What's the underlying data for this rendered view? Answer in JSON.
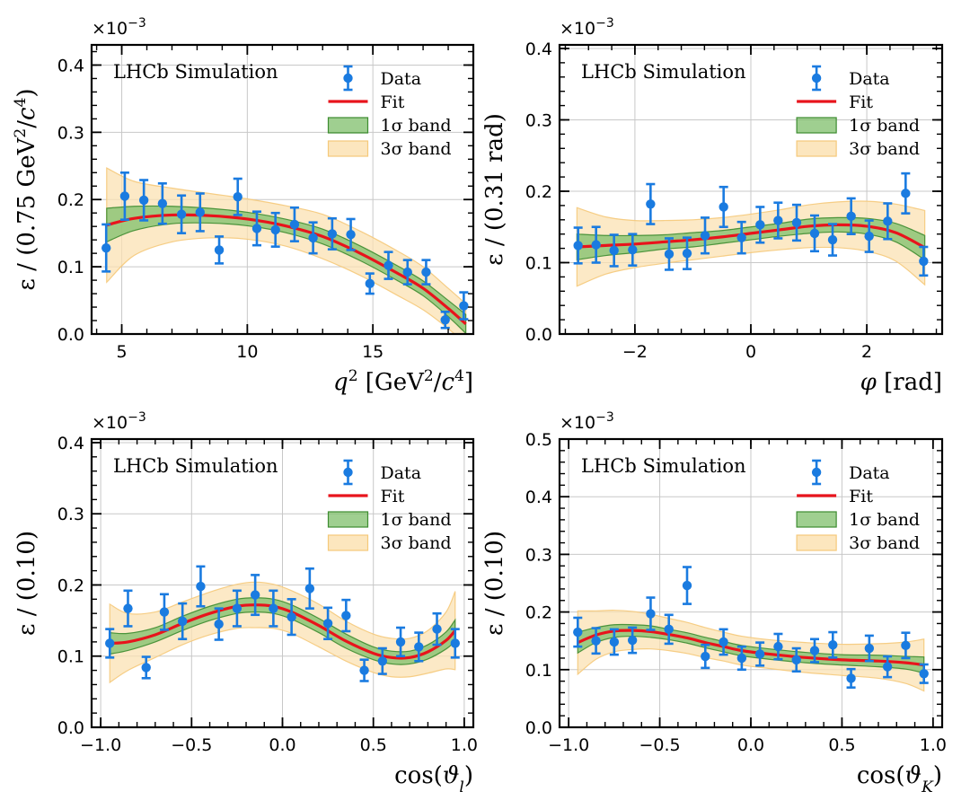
{
  "chart_data": [
    {
      "type": "scatter",
      "id": "q2",
      "multiplier": "×10⁻³",
      "simulation_label": "LHCb Simulation",
      "xlabel": "q² [GeV²/c⁴]",
      "ylabel": "ε / (0.75 GeV²/c⁴)",
      "xlim": [
        3.8,
        19.0
      ],
      "ylim": [
        0.0,
        0.43
      ],
      "xticks": [
        5,
        10,
        15
      ],
      "xtick_labels": [
        "5",
        "10",
        "15"
      ],
      "yticks": [
        0.0,
        0.1,
        0.2,
        0.3,
        0.4
      ],
      "ytick_labels": [
        "0.0",
        "0.1",
        "0.2",
        "0.3",
        "0.4"
      ],
      "legend": {
        "data": "Data",
        "fit": "Fit",
        "band1": "1σ band",
        "band3": "3σ band"
      },
      "data": {
        "x": [
          4.38,
          5.12,
          5.88,
          6.62,
          7.38,
          8.12,
          8.88,
          9.62,
          10.38,
          11.12,
          11.88,
          12.62,
          13.38,
          14.12,
          14.88,
          15.62,
          16.38,
          17.12,
          17.88,
          18.62
        ],
        "y": [
          0.128,
          0.205,
          0.199,
          0.194,
          0.178,
          0.181,
          0.125,
          0.204,
          0.157,
          0.155,
          0.163,
          0.143,
          0.149,
          0.148,
          0.075,
          0.102,
          0.092,
          0.092,
          0.021,
          0.042
        ],
        "yerr": [
          0.035,
          0.035,
          0.03,
          0.03,
          0.028,
          0.028,
          0.02,
          0.027,
          0.025,
          0.025,
          0.025,
          0.023,
          0.023,
          0.023,
          0.015,
          0.02,
          0.018,
          0.018,
          0.012,
          0.02
        ]
      },
      "fit": {
        "x": [
          4.4,
          5.5,
          7.0,
          8.5,
          10.0,
          11.5,
          13.0,
          14.5,
          16.0,
          17.0,
          18.0,
          18.7
        ],
        "y": [
          0.162,
          0.172,
          0.177,
          0.176,
          0.171,
          0.161,
          0.145,
          0.12,
          0.09,
          0.068,
          0.038,
          0.015
        ],
        "band1": [
          0.025,
          0.018,
          0.013,
          0.011,
          0.01,
          0.01,
          0.011,
          0.011,
          0.011,
          0.011,
          0.012,
          0.014
        ],
        "band3": [
          0.085,
          0.055,
          0.04,
          0.033,
          0.03,
          0.03,
          0.033,
          0.033,
          0.033,
          0.032,
          0.03,
          0.03
        ]
      }
    },
    {
      "type": "scatter",
      "id": "phi",
      "multiplier": "×10⁻³",
      "simulation_label": "LHCb Simulation",
      "xlabel": "φ [rad]",
      "ylabel": "ε / (0.31 rad)",
      "xlim": [
        -3.3,
        3.3
      ],
      "ylim": [
        0.0,
        0.405
      ],
      "xticks": [
        -2,
        0,
        2
      ],
      "xtick_labels": [
        "−2",
        "0",
        "2"
      ],
      "yticks": [
        0.0,
        0.1,
        0.2,
        0.3,
        0.4
      ],
      "ytick_labels": [
        "0.0",
        "0.1",
        "0.2",
        "0.3",
        "0.4"
      ],
      "legend": {
        "data": "Data",
        "fit": "Fit",
        "band1": "1σ band",
        "band3": "3σ band"
      },
      "data": {
        "x": [
          -2.98,
          -2.67,
          -2.36,
          -2.04,
          -1.73,
          -1.41,
          -1.1,
          -0.79,
          -0.47,
          -0.16,
          0.16,
          0.47,
          0.79,
          1.1,
          1.41,
          1.73,
          2.04,
          2.36,
          2.67,
          2.98
        ],
        "y": [
          0.124,
          0.125,
          0.117,
          0.118,
          0.182,
          0.112,
          0.113,
          0.138,
          0.178,
          0.135,
          0.153,
          0.159,
          0.156,
          0.141,
          0.132,
          0.165,
          0.137,
          0.158,
          0.197,
          0.102
        ],
        "yerr": [
          0.025,
          0.025,
          0.022,
          0.022,
          0.028,
          0.022,
          0.022,
          0.025,
          0.028,
          0.022,
          0.025,
          0.025,
          0.025,
          0.025,
          0.022,
          0.025,
          0.022,
          0.025,
          0.028,
          0.02
        ]
      },
      "fit": {
        "x": [
          -3.0,
          -2.5,
          -2.0,
          -1.5,
          -1.0,
          -0.5,
          0.0,
          0.5,
          1.0,
          1.5,
          2.0,
          2.5,
          3.0
        ],
        "y": [
          0.122,
          0.124,
          0.126,
          0.129,
          0.132,
          0.136,
          0.141,
          0.146,
          0.151,
          0.153,
          0.151,
          0.142,
          0.121
        ],
        "band1": [
          0.018,
          0.014,
          0.012,
          0.01,
          0.01,
          0.009,
          0.009,
          0.009,
          0.01,
          0.01,
          0.011,
          0.013,
          0.017
        ],
        "band3": [
          0.055,
          0.04,
          0.033,
          0.03,
          0.028,
          0.027,
          0.027,
          0.028,
          0.03,
          0.032,
          0.035,
          0.04,
          0.052
        ]
      }
    },
    {
      "type": "scatter",
      "id": "costhetal",
      "multiplier": "×10⁻³",
      "simulation_label": "LHCb Simulation",
      "xlabel": "cos(ϑ_l)",
      "ylabel": "ε / (0.10)",
      "xlim": [
        -1.05,
        1.05
      ],
      "ylim": [
        0.0,
        0.405
      ],
      "xticks": [
        -1.0,
        -0.5,
        0.0,
        0.5,
        1.0
      ],
      "xtick_labels": [
        "−1.0",
        "−0.5",
        "0.0",
        "0.5",
        "1.0"
      ],
      "yticks": [
        0.0,
        0.1,
        0.2,
        0.3,
        0.4
      ],
      "ytick_labels": [
        "0.0",
        "0.1",
        "0.2",
        "0.3",
        "0.4"
      ],
      "legend": {
        "data": "Data",
        "fit": "Fit",
        "band1": "1σ band",
        "band3": "3σ band"
      },
      "data": {
        "x": [
          -0.95,
          -0.85,
          -0.75,
          -0.65,
          -0.55,
          -0.45,
          -0.35,
          -0.25,
          -0.15,
          -0.05,
          0.05,
          0.15,
          0.25,
          0.35,
          0.45,
          0.55,
          0.65,
          0.75,
          0.85,
          0.95
        ],
        "y": [
          0.118,
          0.167,
          0.084,
          0.162,
          0.149,
          0.198,
          0.145,
          0.167,
          0.186,
          0.167,
          0.155,
          0.195,
          0.146,
          0.157,
          0.08,
          0.093,
          0.12,
          0.113,
          0.138,
          0.118
        ],
        "yerr": [
          0.02,
          0.025,
          0.015,
          0.025,
          0.025,
          0.028,
          0.022,
          0.025,
          0.028,
          0.025,
          0.025,
          0.028,
          0.022,
          0.022,
          0.015,
          0.018,
          0.02,
          0.02,
          0.022,
          0.02
        ]
      },
      "fit": {
        "x": [
          -0.95,
          -0.85,
          -0.7,
          -0.55,
          -0.4,
          -0.25,
          -0.15,
          -0.05,
          0.05,
          0.2,
          0.35,
          0.5,
          0.6,
          0.7,
          0.8,
          0.9,
          0.95
        ],
        "y": [
          0.118,
          0.12,
          0.13,
          0.146,
          0.16,
          0.17,
          0.172,
          0.17,
          0.162,
          0.143,
          0.121,
          0.104,
          0.098,
          0.098,
          0.106,
          0.122,
          0.136
        ],
        "band1": [
          0.015,
          0.012,
          0.01,
          0.01,
          0.01,
          0.01,
          0.01,
          0.01,
          0.01,
          0.01,
          0.01,
          0.009,
          0.009,
          0.009,
          0.01,
          0.012,
          0.015
        ],
        "band3": [
          0.055,
          0.04,
          0.032,
          0.03,
          0.03,
          0.031,
          0.032,
          0.031,
          0.03,
          0.03,
          0.028,
          0.027,
          0.027,
          0.027,
          0.03,
          0.04,
          0.055
        ]
      }
    },
    {
      "type": "scatter",
      "id": "costhetak",
      "multiplier": "×10⁻³",
      "simulation_label": "LHCb Simulation",
      "xlabel": "cos(ϑ_K)",
      "ylabel": "ε / (0.10)",
      "xlim": [
        -1.05,
        1.05
      ],
      "ylim": [
        0.0,
        0.5
      ],
      "xticks": [
        -1.0,
        -0.5,
        0.0,
        0.5,
        1.0
      ],
      "xtick_labels": [
        "−1.0",
        "−0.5",
        "0.0",
        "0.5",
        "1.0"
      ],
      "yticks": [
        0.0,
        0.1,
        0.2,
        0.3,
        0.4,
        0.5
      ],
      "ytick_labels": [
        "0.0",
        "0.1",
        "0.2",
        "0.3",
        "0.4",
        "0.5"
      ],
      "legend": {
        "data": "Data",
        "fit": "Fit",
        "band1": "1σ band",
        "band3": "3σ band"
      },
      "data": {
        "x": [
          -0.95,
          -0.85,
          -0.75,
          -0.65,
          -0.55,
          -0.45,
          -0.35,
          -0.25,
          -0.15,
          -0.05,
          0.05,
          0.15,
          0.25,
          0.35,
          0.45,
          0.55,
          0.65,
          0.75,
          0.85,
          0.95
        ],
        "y": [
          0.165,
          0.15,
          0.148,
          0.151,
          0.197,
          0.17,
          0.246,
          0.123,
          0.148,
          0.12,
          0.127,
          0.14,
          0.117,
          0.133,
          0.143,
          0.085,
          0.137,
          0.105,
          0.142,
          0.093
        ],
        "yerr": [
          0.025,
          0.022,
          0.022,
          0.022,
          0.028,
          0.025,
          0.032,
          0.02,
          0.022,
          0.02,
          0.02,
          0.022,
          0.02,
          0.02,
          0.022,
          0.016,
          0.022,
          0.018,
          0.022,
          0.016
        ]
      },
      "fit": {
        "x": [
          -0.95,
          -0.85,
          -0.75,
          -0.65,
          -0.55,
          -0.45,
          -0.35,
          -0.25,
          -0.15,
          -0.05,
          0.1,
          0.3,
          0.5,
          0.7,
          0.85,
          0.95
        ],
        "y": [
          0.147,
          0.16,
          0.167,
          0.168,
          0.166,
          0.161,
          0.155,
          0.147,
          0.14,
          0.133,
          0.127,
          0.121,
          0.117,
          0.115,
          0.112,
          0.108
        ],
        "band1": [
          0.018,
          0.013,
          0.011,
          0.01,
          0.01,
          0.009,
          0.009,
          0.009,
          0.009,
          0.009,
          0.009,
          0.009,
          0.009,
          0.01,
          0.011,
          0.014
        ],
        "band3": [
          0.055,
          0.042,
          0.036,
          0.033,
          0.03,
          0.028,
          0.027,
          0.026,
          0.025,
          0.025,
          0.025,
          0.026,
          0.027,
          0.03,
          0.036,
          0.045
        ]
      }
    }
  ],
  "colors": {
    "data": "#1a7be0",
    "fit": "#e8141c",
    "band1_fill": "#7fbf6b",
    "band1_edge": "#3d8c30",
    "band3_fill": "#fbe2b3",
    "band3_edge": "#f5c97a",
    "grid": "#c8c8c8"
  }
}
